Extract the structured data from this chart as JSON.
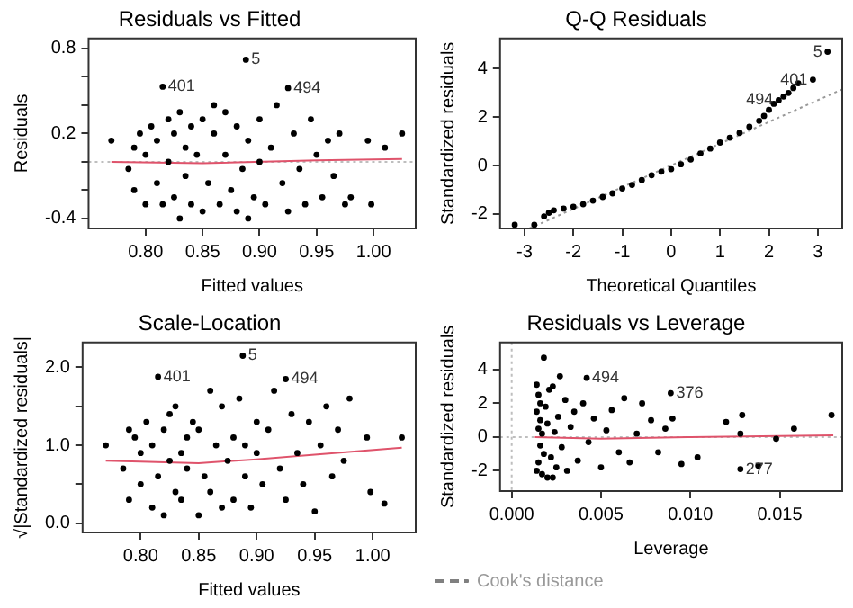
{
  "chart_data": [
    {
      "type": "scatter",
      "title": "Residuals vs Fitted",
      "xlabel": "Fitted values",
      "ylabel": "Residuals",
      "xlim": [
        0.75,
        1.037
      ],
      "ylim": [
        -0.47,
        0.87
      ],
      "xticks": [
        {
          "value": 0.8,
          "label": "0.80"
        },
        {
          "value": 0.85,
          "label": "0.85"
        },
        {
          "value": 0.9,
          "label": "0.90"
        },
        {
          "value": 0.95,
          "label": "0.95"
        },
        {
          "value": 1.0,
          "label": "1.00"
        }
      ],
      "yticks": [
        -0.4,
        {
          "value": -0.2,
          "label": null
        },
        {
          "value": 0,
          "label": null
        },
        0.2,
        {
          "value": 0.4,
          "label": null
        },
        {
          "value": 0.6,
          "label": null
        },
        0.8
      ],
      "series": [
        {
          "type": "scatter",
          "marker": "circle",
          "color": "#000000",
          "x": [
            0.77,
            0.785,
            0.79,
            0.79,
            0.795,
            0.8,
            0.8,
            0.805,
            0.81,
            0.81,
            0.815,
            0.82,
            0.82,
            0.825,
            0.825,
            0.83,
            0.83,
            0.835,
            0.835,
            0.84,
            0.84,
            0.845,
            0.85,
            0.85,
            0.855,
            0.86,
            0.86,
            0.865,
            0.87,
            0.87,
            0.875,
            0.88,
            0.88,
            0.885,
            0.89,
            0.89,
            0.895,
            0.9,
            0.9,
            0.905,
            0.91,
            0.915,
            0.92,
            0.925,
            0.93,
            0.935,
            0.94,
            0.945,
            0.95,
            0.955,
            0.96,
            0.965,
            0.97,
            0.975,
            0.98,
            0.995,
            0.998,
            1.01,
            1.025,
            0.888,
            0.815,
            0.925
          ],
          "values": [
            0.15,
            -0.05,
            0.1,
            -0.2,
            0.2,
            -0.3,
            0.05,
            0.25,
            -0.15,
            0.15,
            -0.3,
            0.0,
            0.3,
            -0.25,
            0.2,
            -0.4,
            0.35,
            -0.1,
            0.1,
            -0.3,
            0.25,
            0.05,
            -0.35,
            0.3,
            -0.15,
            0.2,
            0.4,
            -0.3,
            0.05,
            0.35,
            -0.2,
            0.25,
            -0.35,
            -0.05,
            -0.4,
            0.15,
            -0.25,
            0.3,
            0.0,
            -0.3,
            0.1,
            0.4,
            -0.15,
            -0.35,
            0.2,
            -0.05,
            -0.3,
            0.3,
            0.05,
            -0.25,
            0.15,
            -0.1,
            0.2,
            -0.3,
            -0.25,
            0.15,
            -0.3,
            0.1,
            0.2,
            0.72,
            0.53,
            0.52
          ]
        },
        {
          "type": "line",
          "color": "#df536b",
          "x": [
            0.77,
            0.85,
            0.95,
            1.025
          ],
          "values": [
            0.0,
            -0.01,
            0.01,
            0.02
          ]
        }
      ],
      "ref_lines": [
        {
          "axis": "y",
          "value": 0,
          "color": "#bebebe",
          "line_style": "dotted"
        }
      ],
      "annotations": [
        {
          "text": "5",
          "x": 0.888,
          "y": 0.72
        },
        {
          "text": "401",
          "x": 0.815,
          "y": 0.53
        },
        {
          "text": "494",
          "x": 0.925,
          "y": 0.52
        }
      ]
    },
    {
      "type": "scatter",
      "title": "Q-Q Residuals",
      "xlabel": "Theoretical Quantiles",
      "ylabel": "Standardized residuals",
      "xlim": [
        -3.5,
        3.5
      ],
      "ylim": [
        -2.6,
        5.25
      ],
      "xticks": [
        -3,
        -2,
        -1,
        0,
        1,
        2,
        3
      ],
      "yticks": [
        -2,
        0,
        2,
        4
      ],
      "series": [
        {
          "type": "scatter",
          "marker": "circle",
          "color": "#000000",
          "x": [
            -3.2,
            -2.8,
            -2.6,
            -2.5,
            -2.4,
            -2.2,
            -2.0,
            -1.8,
            -1.6,
            -1.4,
            -1.2,
            -1.0,
            -0.8,
            -0.6,
            -0.4,
            -0.2,
            0.0,
            0.2,
            0.4,
            0.6,
            0.8,
            1.0,
            1.2,
            1.4,
            1.6,
            1.8,
            1.9,
            2.0,
            2.1,
            2.2,
            2.3,
            2.4,
            2.5,
            2.6,
            2.9,
            3.2
          ],
          "values": [
            -2.45,
            -2.45,
            -2.1,
            -1.95,
            -1.85,
            -1.78,
            -1.7,
            -1.6,
            -1.45,
            -1.3,
            -1.15,
            -0.95,
            -0.8,
            -0.6,
            -0.4,
            -0.25,
            -0.15,
            0.05,
            0.25,
            0.5,
            0.7,
            0.95,
            1.15,
            1.35,
            1.6,
            1.85,
            2.05,
            2.3,
            2.55,
            2.7,
            2.85,
            3.0,
            3.2,
            3.4,
            3.55,
            4.7
          ]
        },
        {
          "type": "line",
          "color": "#999999",
          "line_style": "dotted",
          "x": [
            -2.9,
            3.5
          ],
          "values": [
            -2.6,
            3.15
          ]
        }
      ],
      "annotations": [
        {
          "text": "5",
          "x": 3.2,
          "y": 4.7
        },
        {
          "text": "494",
          "x": 2.2,
          "y": 2.7
        },
        {
          "text": "401",
          "x": 2.9,
          "y": 3.55
        }
      ]
    },
    {
      "type": "scatter",
      "title": "Scale-Location",
      "xlabel": "Fitted values",
      "ylabel": "√|Standardized residuals|",
      "xlim": [
        0.75,
        1.037
      ],
      "ylim": [
        -0.12,
        2.32
      ],
      "xticks": [
        {
          "value": 0.8,
          "label": "0.80"
        },
        {
          "value": 0.85,
          "label": "0.85"
        },
        {
          "value": 0.9,
          "label": "0.90"
        },
        {
          "value": 0.95,
          "label": "0.95"
        },
        {
          "value": 1.0,
          "label": "1.00"
        }
      ],
      "yticks": [
        {
          "value": 0,
          "label": "0.0"
        },
        {
          "value": 0.5,
          "label": null
        },
        {
          "value": 1,
          "label": "1.0"
        },
        {
          "value": 1.5,
          "label": null
        },
        {
          "value": 2,
          "label": "2.0"
        }
      ],
      "series": [
        {
          "type": "scatter",
          "marker": "circle",
          "color": "#000000",
          "x": [
            0.77,
            0.785,
            0.79,
            0.79,
            0.795,
            0.8,
            0.8,
            0.805,
            0.81,
            0.81,
            0.815,
            0.82,
            0.82,
            0.825,
            0.825,
            0.83,
            0.83,
            0.835,
            0.835,
            0.84,
            0.84,
            0.845,
            0.85,
            0.85,
            0.855,
            0.86,
            0.86,
            0.865,
            0.87,
            0.87,
            0.875,
            0.88,
            0.88,
            0.885,
            0.89,
            0.89,
            0.895,
            0.9,
            0.9,
            0.905,
            0.91,
            0.915,
            0.92,
            0.925,
            0.93,
            0.935,
            0.94,
            0.945,
            0.95,
            0.955,
            0.96,
            0.965,
            0.97,
            0.975,
            0.98,
            0.995,
            0.998,
            1.01,
            1.025,
            0.888,
            0.815,
            0.925
          ],
          "values": [
            1.0,
            0.7,
            1.2,
            0.3,
            1.1,
            0.9,
            0.5,
            1.3,
            0.2,
            1.0,
            0.6,
            1.2,
            0.1,
            0.8,
            1.4,
            0.4,
            1.5,
            0.9,
            0.3,
            1.1,
            0.7,
            1.3,
            0.1,
            1.2,
            0.6,
            1.7,
            0.4,
            1.0,
            0.2,
            1.5,
            0.8,
            1.1,
            0.3,
            1.6,
            0.6,
            1.0,
            0.2,
            1.3,
            0.9,
            0.5,
            1.2,
            1.7,
            0.7,
            0.3,
            1.4,
            0.9,
            0.5,
            1.3,
            0.15,
            1.0,
            1.5,
            0.6,
            1.2,
            0.8,
            1.6,
            1.1,
            0.4,
            0.25,
            1.1,
            2.15,
            1.88,
            1.85
          ]
        },
        {
          "type": "line",
          "color": "#df536b",
          "x": [
            0.77,
            0.8,
            0.85,
            0.9,
            0.95,
            1.025
          ],
          "values": [
            0.8,
            0.79,
            0.77,
            0.82,
            0.88,
            0.97
          ]
        }
      ],
      "annotations": [
        {
          "text": "5",
          "x": 0.888,
          "y": 2.15
        },
        {
          "text": "401",
          "x": 0.815,
          "y": 1.88
        },
        {
          "text": "494",
          "x": 0.925,
          "y": 1.85
        }
      ]
    },
    {
      "type": "scatter",
      "title": "Residuals vs Leverage",
      "xlabel": "Leverage",
      "ylabel": "Standardized residuals",
      "legend": "bottom left",
      "xlim": [
        -0.00065,
        0.0185
      ],
      "ylim": [
        -3.2,
        5.6
      ],
      "xticks": [
        {
          "value": 0,
          "label": "0.000"
        },
        {
          "value": 0.005,
          "label": "0.005"
        },
        {
          "value": 0.01,
          "label": "0.010"
        },
        {
          "value": 0.015,
          "label": "0.015"
        }
      ],
      "yticks": [
        -2,
        0,
        2,
        4
      ],
      "series": [
        {
          "type": "scatter",
          "marker": "circle",
          "color": "#000000",
          "x": [
            0.0014,
            0.0014,
            0.0014,
            0.0015,
            0.0015,
            0.0015,
            0.0016,
            0.0016,
            0.0016,
            0.0017,
            0.0017,
            0.0018,
            0.0018,
            0.0019,
            0.002,
            0.002,
            0.0021,
            0.0022,
            0.0023,
            0.0024,
            0.0025,
            0.0026,
            0.0027,
            0.0028,
            0.003,
            0.0031,
            0.0033,
            0.0035,
            0.0037,
            0.004,
            0.0043,
            0.0046,
            0.005,
            0.0053,
            0.0056,
            0.006,
            0.0063,
            0.0066,
            0.007,
            0.0073,
            0.0078,
            0.0082,
            0.0086,
            0.009,
            0.0095,
            0.0104,
            0.012,
            0.0128,
            0.0129,
            0.0138,
            0.0148,
            0.0158,
            0.0179,
            0.0023,
            0.0042,
            0.0089,
            0.0128
          ],
          "values": [
            3.1,
            1.5,
            -2.0,
            2.5,
            0.5,
            -1.5,
            2.0,
            -0.5,
            1.0,
            -2.2,
            0.2,
            4.7,
            -1.0,
            1.8,
            -2.4,
            0.8,
            2.8,
            -1.2,
            3.0,
            0.3,
            -1.8,
            1.2,
            3.6,
            -0.6,
            2.2,
            -2.0,
            0.6,
            1.5,
            -1.4,
            2.0,
            -0.3,
            1.1,
            -1.8,
            0.4,
            1.6,
            -0.9,
            2.3,
            -1.5,
            0.2,
            2.0,
            1.0,
            -0.9,
            0.5,
            1.1,
            -1.6,
            -1.2,
            0.9,
            0.2,
            1.3,
            -1.7,
            -0.1,
            0.5,
            1.3,
            -2.4,
            3.5,
            2.6,
            -1.9
          ]
        },
        {
          "type": "line",
          "color": "#df536b",
          "x": [
            0.0013,
            0.005,
            0.01,
            0.018
          ],
          "values": [
            0,
            -0.1,
            0,
            0.1
          ]
        },
        {
          "type": "line",
          "name": "Cook's distance",
          "color": "#808080",
          "line_style": "dashed"
        }
      ],
      "ref_lines": [
        {
          "axis": "y",
          "value": 0,
          "color": "#bebebe",
          "line_style": "dotted"
        },
        {
          "axis": "x",
          "value": 0,
          "color": "#bebebe",
          "line_style": "dotted"
        }
      ],
      "annotations": [
        {
          "text": "494",
          "x": 0.0042,
          "y": 3.5
        },
        {
          "text": "376",
          "x": 0.0089,
          "y": 2.6
        },
        {
          "text": "277",
          "x": 0.0128,
          "y": -1.9
        }
      ]
    }
  ]
}
